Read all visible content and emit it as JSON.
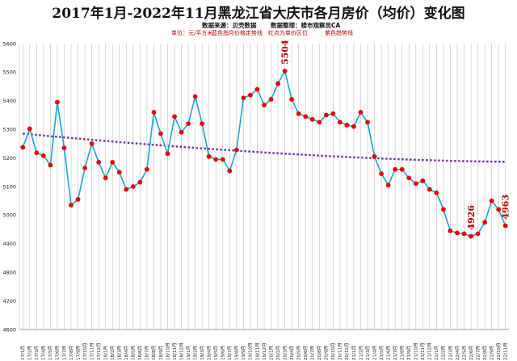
{
  "chart_data": {
    "type": "line",
    "title": "2017年1月-2022年11月黑龙江省大庆市各月房价（均价）变化图",
    "subtitle_lines": [
      [
        "数据来源：贝壳数据",
        "数据整理：楼市观察员CA"
      ],
      [
        "单位：元/平方米",
        "蓝色指月价格走势线",
        "红点为单价区位",
        "紫色趋势线"
      ]
    ],
    "xlabel": "",
    "ylabel": "",
    "ylim": [
      4600,
      5600
    ],
    "yticks": [
      4600,
      4700,
      4800,
      4900,
      5000,
      5100,
      5200,
      5300,
      5400,
      5500,
      5600
    ],
    "grid": "vertical",
    "legend": "none",
    "colors": {
      "line": "#1aa3d9",
      "marker": "#e60000",
      "trend": "#7030a0",
      "annotation": "#c00000",
      "grid": "#bfbfbf"
    },
    "x": [
      "17/1月",
      "17/2月",
      "17/3月",
      "17/4月",
      "17/5月",
      "17/6月",
      "17/7月",
      "17/8月",
      "17/9月",
      "17/10月",
      "17/11月",
      "17/12月",
      "18/1月",
      "18/2月",
      "18/3月",
      "18/4月",
      "18/5月",
      "18/6月",
      "18/7月",
      "18/8月",
      "18/9月",
      "18/10月",
      "18/11月",
      "18/12月",
      "19/1月",
      "19/2月",
      "19/3月",
      "19/4月",
      "19/5月",
      "19/6月",
      "19/7月",
      "19/8月",
      "19/9月",
      "19/10月",
      "19/11月",
      "19/12月",
      "20/1月",
      "20/2月",
      "20/3月",
      "20/4月",
      "20/5月",
      "20/6月",
      "20/7月",
      "20/8月",
      "20/9月",
      "20/10月",
      "20/11月",
      "20/12月",
      "21/1月",
      "21/2月",
      "21/3月",
      "21/4月",
      "21/5月",
      "21/6月",
      "21/7月",
      "21/8月",
      "21/9月",
      "21/10月",
      "21/11月",
      "21/12月",
      "22/1月",
      "22/2月",
      "22/3月",
      "22/4月",
      "22/5月",
      "22/6月",
      "22/7月",
      "22/8月",
      "22/9月",
      "22/10月",
      "22/11月"
    ],
    "series": [
      {
        "values": [
          5237,
          5302,
          5218,
          5208,
          5175,
          5395,
          5235,
          5035,
          5055,
          5165,
          5250,
          5185,
          5130,
          5185,
          5150,
          5090,
          5100,
          5115,
          5160,
          5360,
          5285,
          5215,
          5345,
          5290,
          5320,
          5415,
          5320,
          5205,
          5195,
          5195,
          5155,
          5228,
          5410,
          5420,
          5440,
          5385,
          5405,
          5460,
          5504,
          5405,
          5355,
          5345,
          5335,
          5325,
          5350,
          5355,
          5325,
          5315,
          5310,
          5360,
          5325,
          5205,
          5145,
          5105,
          5160,
          5160,
          5130,
          5110,
          5120,
          5090,
          5078,
          5020,
          4945,
          4938,
          4935,
          4926,
          4935,
          4975,
          5050,
          5020,
          4963
        ]
      }
    ],
    "trend": {
      "start": 5285,
      "end": 5187
    },
    "annotations": [
      {
        "text": "5504",
        "index": 38
      },
      {
        "text": "4926",
        "index": 65
      },
      {
        "text": "4963",
        "index": 70
      }
    ]
  }
}
